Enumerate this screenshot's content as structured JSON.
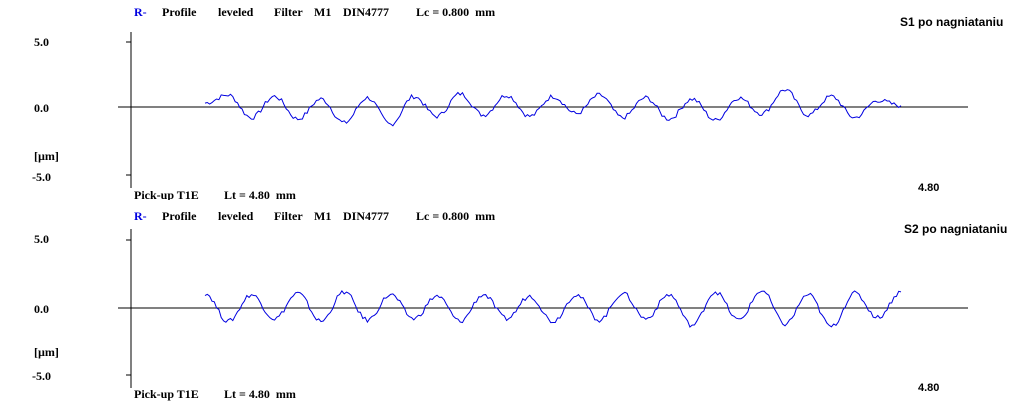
{
  "charts": [
    {
      "header": {
        "prefix": "R-",
        "profile": "Profile",
        "leveled": "leveled",
        "filter": "Filter",
        "filter_type": "M1",
        "standard": "DIN4777",
        "lc": "Lc = 0.800  mm"
      },
      "sample": "S1 po nagniataniu",
      "yticks": [
        "5.0",
        "0.0",
        "[µm]",
        "-5.0"
      ],
      "pickup": "Pick-up T1E",
      "lt": "Lt = 4.80  mm",
      "end_label": "4.80",
      "color": "#0000e0"
    },
    {
      "header": {
        "prefix": "R-",
        "profile": "Profile",
        "leveled": "leveled",
        "filter": "Filter",
        "filter_type": "M1",
        "standard": "DIN4777",
        "lc": "Lc = 0.800  mm"
      },
      "sample": "S2 po nagniataniu",
      "yticks": [
        "5.0",
        "0.0",
        "[µm]",
        "-5.0"
      ],
      "pickup": "Pick-up T1E",
      "lt": "Lt = 4.80  mm",
      "end_label": "4.80",
      "color": "#0000e0"
    }
  ],
  "chart_data": [
    {
      "type": "line",
      "x": [
        0.0,
        0.16,
        0.32,
        0.48,
        0.64,
        0.8,
        0.96,
        1.12,
        1.28,
        1.44,
        1.6,
        1.76,
        1.92,
        2.08,
        2.24,
        2.4,
        2.56,
        2.72,
        2.88,
        3.04,
        3.2,
        3.36,
        3.52,
        3.68,
        3.84,
        4.0,
        4.16,
        4.32,
        4.48,
        4.64,
        4.8
      ],
      "series": [
        {
          "values": [
            0.3,
            0.9,
            -0.8,
            0.8,
            -0.9,
            0.6,
            -1.2,
            0.7,
            -1.3,
            0.8,
            -0.7,
            1.0,
            -0.6,
            0.9,
            -0.7,
            0.8,
            -0.5,
            0.9,
            -0.8,
            0.7,
            -0.9,
            0.6,
            -1.0,
            0.7,
            -0.5,
            1.3,
            -0.6,
            0.8,
            -0.8,
            0.5,
            0.1
          ]
        }
      ],
      "xlim": [
        0,
        4.8
      ],
      "ylim": [
        -5.0,
        5.0
      ],
      "ytick_values": [
        5.0,
        0.0,
        -5.0
      ]
    },
    {
      "type": "line",
      "x": [
        0.0,
        0.16,
        0.32,
        0.48,
        0.64,
        0.8,
        0.96,
        1.12,
        1.28,
        1.44,
        1.6,
        1.76,
        1.92,
        2.08,
        2.24,
        2.4,
        2.56,
        2.72,
        2.88,
        3.04,
        3.2,
        3.36,
        3.52,
        3.68,
        3.84,
        4.0,
        4.16,
        4.32,
        4.48,
        4.64,
        4.8
      ],
      "series": [
        {
          "values": [
            1.1,
            -1.0,
            1.0,
            -0.8,
            1.1,
            -1.0,
            1.2,
            -0.9,
            1.0,
            -0.8,
            0.9,
            -1.0,
            1.0,
            -0.8,
            0.9,
            -1.0,
            1.0,
            -0.9,
            1.1,
            -0.8,
            1.0,
            -1.3,
            1.2,
            -0.9,
            1.3,
            -1.2,
            1.0,
            -1.4,
            1.1,
            -0.7,
            1.2
          ]
        }
      ],
      "xlim": [
        0,
        4.8
      ],
      "ylim": [
        -5.0,
        5.0
      ],
      "ytick_values": [
        5.0,
        0.0,
        -5.0
      ]
    }
  ]
}
